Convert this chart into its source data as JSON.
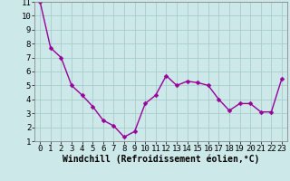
{
  "x": [
    0,
    1,
    2,
    3,
    4,
    5,
    6,
    7,
    8,
    9,
    10,
    11,
    12,
    13,
    14,
    15,
    16,
    17,
    18,
    19,
    20,
    21,
    22,
    23
  ],
  "y": [
    11.0,
    7.7,
    7.0,
    5.0,
    4.3,
    3.5,
    2.5,
    2.1,
    1.3,
    1.7,
    3.7,
    4.3,
    5.7,
    5.0,
    5.3,
    5.2,
    5.0,
    4.0,
    3.2,
    3.7,
    3.7,
    3.1,
    3.1,
    5.5
  ],
  "line_color": "#990099",
  "marker_color": "#990099",
  "bg_color": "#cce8e8",
  "grid_color": "#aacccc",
  "xlabel": "Windchill (Refroidissement éolien,°C)",
  "xlim": [
    -0.5,
    23.5
  ],
  "ylim": [
    1,
    11
  ],
  "yticks": [
    1,
    2,
    3,
    4,
    5,
    6,
    7,
    8,
    9,
    10,
    11
  ],
  "xticks": [
    0,
    1,
    2,
    3,
    4,
    5,
    6,
    7,
    8,
    9,
    10,
    11,
    12,
    13,
    14,
    15,
    16,
    17,
    18,
    19,
    20,
    21,
    22,
    23
  ],
  "xlabel_fontsize": 7,
  "tick_fontsize": 6.5,
  "marker_size": 2.5,
  "line_width": 1.0
}
